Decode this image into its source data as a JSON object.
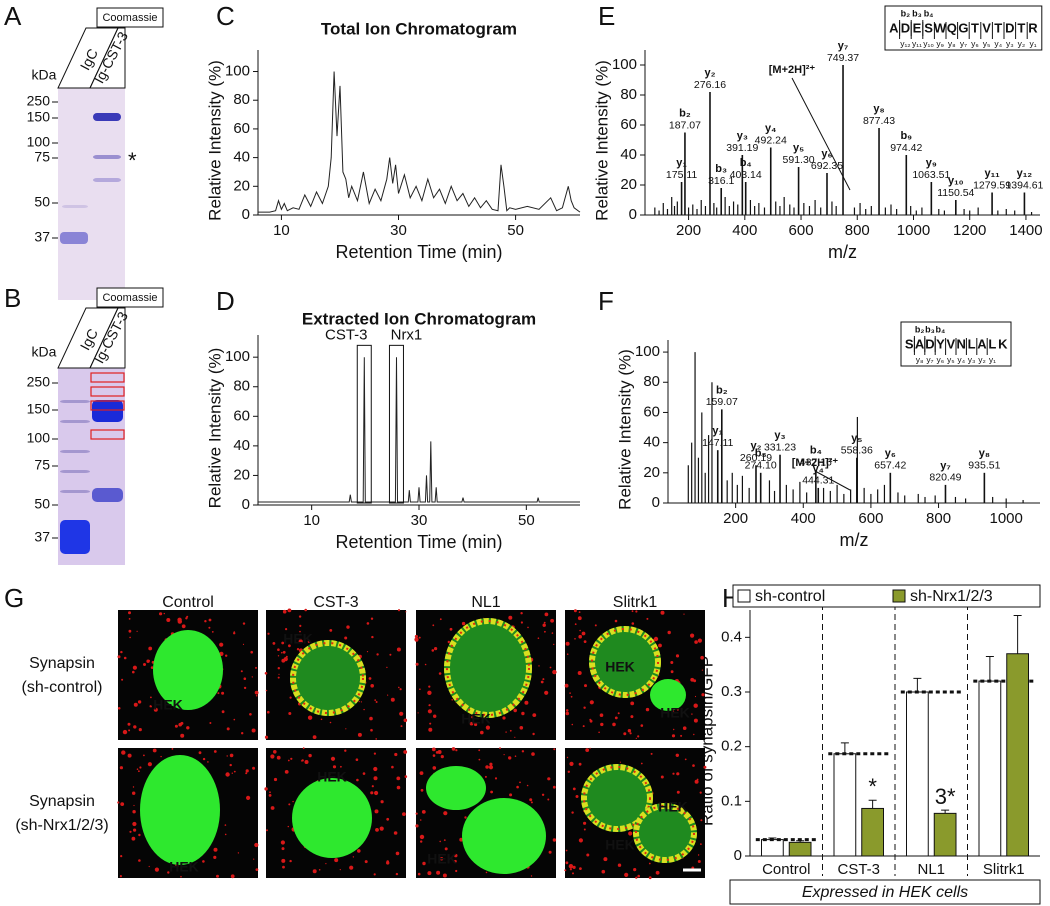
{
  "panel_labels": [
    "A",
    "B",
    "C",
    "D",
    "E",
    "F",
    "G",
    "H"
  ],
  "gels": [
    {
      "stain": "Coomassie",
      "lanes": [
        "IgC",
        "Ig-CST-3"
      ],
      "unit": "kDa",
      "markers": [
        250,
        150,
        100,
        75,
        50,
        37
      ],
      "annotation": "*"
    },
    {
      "stain": "Coomassie",
      "lanes": [
        "IgC",
        "Ig-CST-3"
      ],
      "unit": "kDa",
      "markers": [
        250,
        150,
        100,
        75,
        50,
        37
      ]
    }
  ],
  "chart_data": [
    {
      "type": "line",
      "title": "Total Ion Chromatogram",
      "xlabel": "Retention Time (min)",
      "ylabel": "Relative Intensity (%)",
      "color": "#222222",
      "x": [
        6,
        8,
        9,
        9.5,
        10,
        10.5,
        11,
        12,
        13,
        14,
        15,
        16,
        17,
        18,
        18.5,
        19,
        19.5,
        20,
        20.5,
        21,
        21.5,
        22,
        23,
        24,
        25,
        26,
        27,
        28,
        28.5,
        29,
        29.5,
        30,
        31,
        32,
        33,
        34,
        35,
        36,
        37,
        38,
        39,
        40,
        41,
        42,
        43,
        44,
        45,
        46,
        47,
        47.5,
        48,
        48.5,
        49,
        50,
        52,
        54,
        56,
        57,
        58,
        59,
        59.5,
        60,
        61
      ],
      "values": [
        2,
        2,
        3,
        10,
        4,
        8,
        3,
        5,
        4,
        14,
        6,
        16,
        8,
        20,
        40,
        100,
        55,
        90,
        30,
        25,
        12,
        20,
        10,
        30,
        8,
        18,
        10,
        25,
        40,
        22,
        35,
        15,
        28,
        12,
        20,
        10,
        25,
        12,
        18,
        8,
        20,
        10,
        15,
        6,
        12,
        5,
        10,
        4,
        3,
        35,
        20,
        3,
        5,
        4,
        6,
        4,
        12,
        3,
        5,
        20,
        10,
        5,
        2
      ],
      "xlim": [
        6,
        61
      ],
      "ylim": [
        0,
        115
      ],
      "xticks": [
        10,
        30,
        50
      ],
      "yticks": [
        0,
        20,
        40,
        60,
        80,
        100
      ]
    },
    {
      "type": "line",
      "title": "Extracted Ion Chromatogram",
      "xlabel": "Retention Time (min)",
      "ylabel": "Relative Intensity (%)",
      "color": "#222222",
      "x": [
        0,
        17,
        17.2,
        17.4,
        19.6,
        19.8,
        20,
        25.6,
        25.8,
        26,
        28,
        28.2,
        28.4,
        29.8,
        30,
        30.2,
        31.2,
        31.4,
        31.6,
        32,
        32.2,
        32.4,
        33,
        33.2,
        33.4,
        38,
        38.2,
        38.4,
        52,
        52.2,
        52.4,
        60
      ],
      "values": [
        2,
        2,
        7,
        2,
        2,
        100,
        2,
        2,
        100,
        2,
        2,
        10,
        2,
        2,
        12,
        2,
        2,
        20,
        2,
        2,
        43,
        2,
        2,
        12,
        2,
        2,
        5,
        2,
        2,
        5,
        2,
        2
      ],
      "annotations": [
        {
          "label": "CST-3",
          "x": 19.8
        },
        {
          "label": "Nrx1",
          "x": 25.8
        }
      ],
      "xlim": [
        0,
        60
      ],
      "ylim": [
        0,
        115
      ],
      "xticks": [
        10,
        30,
        50
      ],
      "yticks": [
        0,
        20,
        40,
        60,
        80,
        100
      ]
    },
    {
      "type": "spectrum",
      "xlabel": "m/z",
      "ylabel": "Relative Intensity (%)",
      "precursor_label": "[M+2H]²⁺",
      "sequence_tag": {
        "sequence": "ADESWQGTVTDTR",
        "b_ions": [
          "b₂",
          "b₃",
          "b₄"
        ],
        "y_ions": [
          "y₁₂",
          "y₁₁",
          "y₁₀",
          "y₉",
          "y₈",
          "y₇",
          "y₆",
          "y₅",
          "y₄",
          "y₃",
          "y₂",
          "y₁"
        ]
      },
      "x": [
        80,
        95,
        110,
        125,
        140,
        150,
        160,
        200,
        215,
        230,
        245,
        260,
        290,
        300,
        330,
        345,
        360,
        375,
        420,
        435,
        450,
        470,
        510,
        525,
        540,
        560,
        575,
        610,
        630,
        650,
        670,
        710,
        725,
        790,
        810,
        830,
        850,
        900,
        920,
        940,
        990,
        1010,
        1030,
        1090,
        1110,
        1180,
        1200,
        1230,
        1300,
        1330,
        1360,
        1420
      ],
      "values": [
        5,
        3,
        8,
        4,
        12,
        6,
        9,
        5,
        7,
        4,
        10,
        6,
        8,
        5,
        12,
        6,
        9,
        7,
        10,
        6,
        8,
        5,
        9,
        6,
        12,
        7,
        5,
        8,
        6,
        10,
        5,
        9,
        6,
        5,
        8,
        4,
        6,
        5,
        7,
        4,
        6,
        3,
        5,
        4,
        3,
        4,
        3,
        5,
        3,
        4,
        3,
        2
      ],
      "annotations": [
        {
          "ion": "y₁",
          "x": 175.11,
          "x_label": "175.11",
          "y": 22
        },
        {
          "ion": "b₂",
          "x": 187.07,
          "x_label": "187.07",
          "y": 55
        },
        {
          "ion": "y₂",
          "x": 276.16,
          "x_label": "276.16",
          "y": 82
        },
        {
          "ion": "b₃",
          "x": 316.1,
          "x_label": "316.1",
          "y": 18
        },
        {
          "ion": "y₃",
          "x": 391.19,
          "x_label": "391.19",
          "y": 40
        },
        {
          "ion": "b₄",
          "x": 403.14,
          "x_label": "403.14",
          "y": 22
        },
        {
          "ion": "y₄",
          "x": 492.24,
          "x_label": "492.24",
          "y": 45
        },
        {
          "ion": "y₅",
          "x": 591.3,
          "x_label": "591.30",
          "y": 32
        },
        {
          "ion": "y₆",
          "x": 692.35,
          "x_label": "692.35",
          "y": 28
        },
        {
          "ion": "y₇",
          "x": 749.37,
          "x_label": "749.37",
          "y": 100
        },
        {
          "ion": "y₈",
          "x": 877.43,
          "x_label": "877.43",
          "y": 58
        },
        {
          "ion": "b₉",
          "x": 974.42,
          "x_label": "974.42",
          "y": 40
        },
        {
          "ion": "y₉",
          "x": 1063.51,
          "x_label": "1063.51",
          "y": 22
        },
        {
          "ion": "y₁₀",
          "x": 1150.54,
          "x_label": "1150.54",
          "y": 10
        },
        {
          "ion": "y₁₁",
          "x": 1279.59,
          "x_label": "1279.59",
          "y": 15
        },
        {
          "ion": "y₁₂",
          "x": 1394.61,
          "x_label": "1394.61",
          "y": 15
        }
      ],
      "xlim": [
        45,
        1450
      ],
      "ylim": [
        0,
        110
      ],
      "xticks": [
        200,
        400,
        600,
        800,
        1000,
        1200,
        1400
      ],
      "yticks": [
        0,
        20,
        40,
        60,
        80,
        100
      ]
    },
    {
      "type": "spectrum",
      "xlabel": "m/z",
      "ylabel": "Relative Intensity (%)",
      "precursor_label": "[M+2H]²⁺",
      "sequence_tag": {
        "sequence": "SADYVNLALK",
        "b_ions": [
          "b₂",
          "b₃",
          "b₄"
        ],
        "y_ions": [
          "y₈",
          "y₇",
          "y₆",
          "y₅",
          "y₄",
          "y₃",
          "y₂",
          "y₁"
        ]
      },
      "x": [
        60,
        70,
        80,
        90,
        100,
        110,
        120,
        130,
        175,
        190,
        205,
        220,
        240,
        300,
        315,
        350,
        370,
        390,
        410,
        460,
        480,
        500,
        520,
        540,
        560,
        580,
        600,
        620,
        640,
        680,
        700,
        740,
        760,
        790,
        850,
        880,
        960,
        1000,
        1050
      ],
      "values": [
        25,
        40,
        100,
        30,
        60,
        20,
        45,
        80,
        15,
        20,
        12,
        18,
        10,
        15,
        8,
        12,
        9,
        14,
        7,
        10,
        8,
        12,
        6,
        9,
        57,
        10,
        6,
        9,
        12,
        7,
        5,
        6,
        4,
        5,
        4,
        3,
        4,
        3,
        2
      ],
      "annotations": [
        {
          "ion": "y₁",
          "x": 147.11,
          "x_label": "147.11",
          "y": 35
        },
        {
          "ion": "b₂",
          "x": 159.07,
          "x_label": "159.07",
          "y": 62
        },
        {
          "ion": "y₂",
          "x": 260.19,
          "x_label": "260.19",
          "y": 25
        },
        {
          "ion": "b₃",
          "x": 274.1,
          "x_label": "274.10",
          "y": 20
        },
        {
          "ion": "y₃",
          "x": 331.23,
          "x_label": "331.23",
          "y": 32
        },
        {
          "ion": "b₄",
          "x": 437.16,
          "x_label": "437.16",
          "y": 22
        },
        {
          "ion": "y₄",
          "x": 444.31,
          "x_label": "444.31",
          "y": 10
        },
        {
          "ion": "y₅",
          "x": 558.36,
          "x_label": "558.36",
          "y": 30
        },
        {
          "ion": "y₆",
          "x": 657.42,
          "x_label": "657.42",
          "y": 20
        },
        {
          "ion": "y₇",
          "x": 820.49,
          "x_label": "820.49",
          "y": 12
        },
        {
          "ion": "y₈",
          "x": 935.51,
          "x_label": "935.51",
          "y": 20
        }
      ],
      "xlim": [
        0,
        1100
      ],
      "ylim": [
        0,
        108
      ],
      "xticks": [
        200,
        400,
        600,
        800,
        1000
      ],
      "yticks": [
        0,
        20,
        40,
        60,
        80,
        100
      ]
    },
    {
      "type": "bar",
      "ylabel": "Ratio of synapsin/GFP",
      "xlabel": "Expressed in HEK cells",
      "legend": "top",
      "categories": [
        "Control",
        "CST-3",
        "NL1",
        "Slitrk1"
      ],
      "series": [
        {
          "name": "sh-control",
          "color": "#ffffff",
          "values": [
            0.03,
            0.187,
            0.3,
            0.32
          ],
          "errors": [
            0.003,
            0.02,
            0.025,
            0.045
          ]
        },
        {
          "name": "sh-Nrx1/2/3",
          "color": "#8a9a2c",
          "values": [
            0.025,
            0.087,
            0.078,
            0.37
          ],
          "errors": [
            0.003,
            0.015,
            0.006,
            0.07
          ],
          "significance": [
            null,
            "*",
            "3*",
            null
          ]
        }
      ],
      "ylim": [
        0,
        0.45
      ],
      "yticks": [
        0,
        0.1,
        0.2,
        0.3,
        0.4
      ]
    }
  ],
  "micrographs": {
    "columns": [
      "Control",
      "CST-3",
      "NL1",
      "Slitrk1"
    ],
    "rows": [
      {
        "label_lines": [
          "Synapsin",
          "(sh-control)"
        ],
        "cells": [
          [
            "HEK"
          ],
          [
            "HEK"
          ],
          [
            "HEK"
          ],
          [
            "HEK",
            "HEK"
          ]
        ]
      },
      {
        "label_lines": [
          "Synapsin",
          "(sh-Nrx1/2/3)"
        ],
        "cells": [
          [
            "HEK"
          ],
          [
            "HEK"
          ],
          [
            "HEK"
          ],
          [
            "HEK",
            "HEK"
          ]
        ]
      }
    ]
  }
}
